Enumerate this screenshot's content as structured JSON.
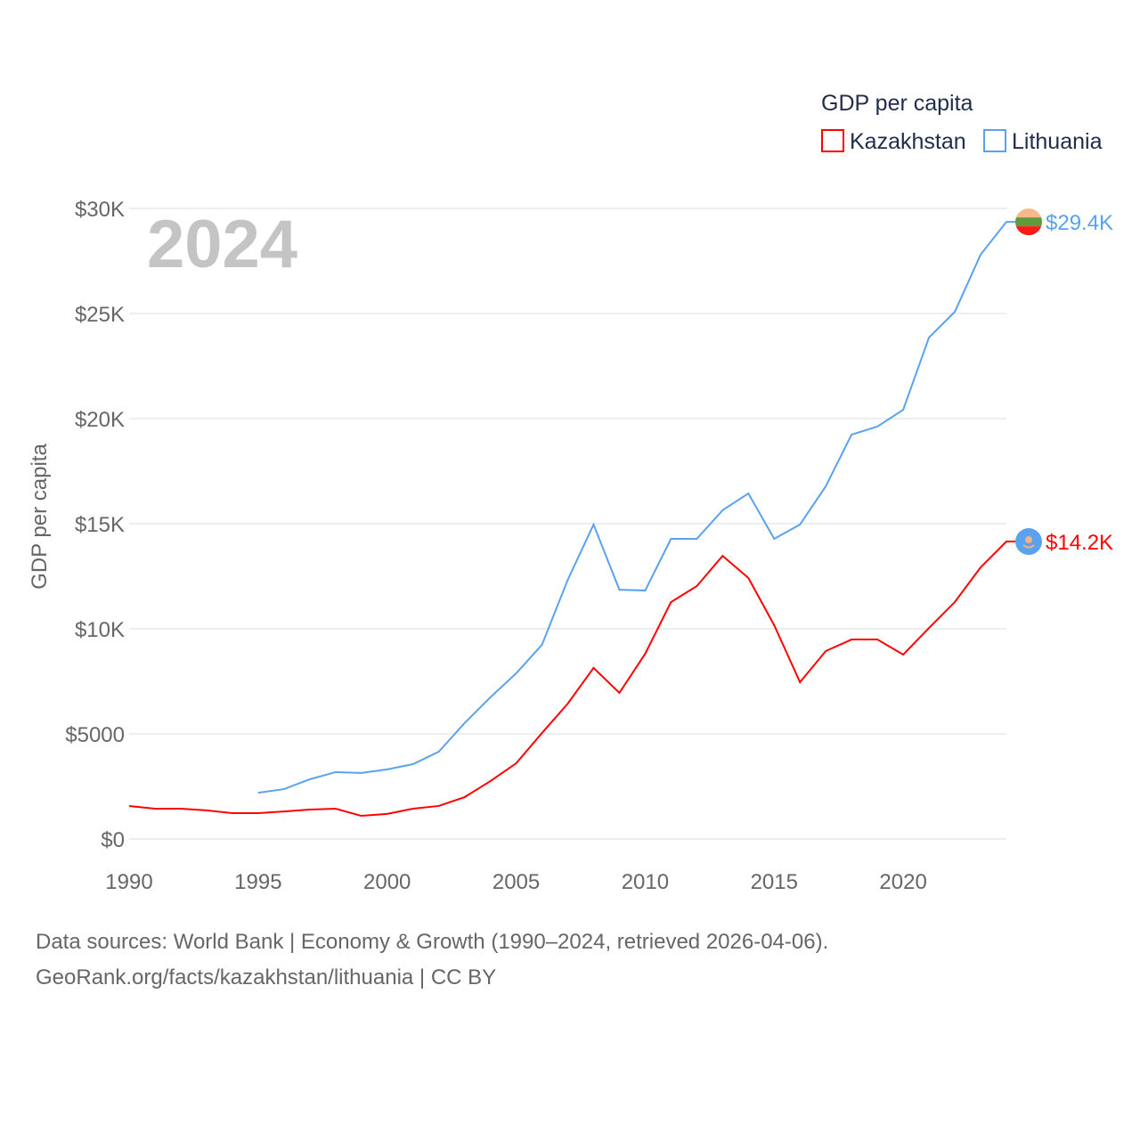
{
  "chart_data": {
    "type": "line",
    "title": "2024",
    "xlabel": "",
    "ylabel": "GDP per capita",
    "legend_title": "GDP per capita",
    "legend_placement": "top-right",
    "xlim": [
      1990,
      2024
    ],
    "ylim": [
      0,
      30000
    ],
    "x_ticks": [
      1990,
      1995,
      2000,
      2005,
      2010,
      2015,
      2020
    ],
    "x_tick_labels": [
      "1990",
      "1995",
      "2000",
      "2005",
      "2010",
      "2015",
      "2020"
    ],
    "y_ticks": [
      0,
      5000,
      10000,
      15000,
      20000,
      25000,
      30000
    ],
    "y_tick_labels": [
      "$0",
      "$5000",
      "$10K",
      "$15K",
      "$20K",
      "$25K",
      "$30K"
    ],
    "grid": true,
    "series": [
      {
        "name": "Kazakhstan",
        "color": "#ff0000",
        "end_label": "$14.2K",
        "flag": "kazakhstan-flag",
        "x": [
          1990,
          1991,
          1992,
          1993,
          1994,
          1995,
          1996,
          1997,
          1998,
          1999,
          2000,
          2001,
          2002,
          2003,
          2004,
          2005,
          2006,
          2007,
          2008,
          2009,
          2010,
          2011,
          2012,
          2013,
          2014,
          2015,
          2016,
          2017,
          2018,
          2019,
          2020,
          2021,
          2022,
          2023,
          2024
        ],
        "values": [
          1570,
          1440,
          1440,
          1360,
          1230,
          1230,
          1310,
          1400,
          1440,
          1100,
          1190,
          1440,
          1570,
          1990,
          2750,
          3600,
          5040,
          6440,
          8140,
          6950,
          8810,
          11270,
          12030,
          13470,
          12420,
          10170,
          7460,
          8940,
          9490,
          9490,
          8770,
          10040,
          11270,
          12920,
          14150
        ]
      },
      {
        "name": "Lithuania",
        "color": "#5aa2ef",
        "end_label": "$29.4K",
        "flag": "lithuania-flag",
        "x": [
          1995,
          1996,
          1997,
          1998,
          1999,
          2000,
          2001,
          2002,
          2003,
          2004,
          2005,
          2006,
          2007,
          2008,
          2009,
          2010,
          2011,
          2012,
          2013,
          2014,
          2015,
          2016,
          2017,
          2018,
          2019,
          2020,
          2021,
          2022,
          2023,
          2024
        ],
        "values": [
          2200,
          2370,
          2840,
          3180,
          3140,
          3310,
          3560,
          4150,
          5510,
          6740,
          7880,
          9240,
          12330,
          14960,
          11860,
          11820,
          14280,
          14280,
          15640,
          16440,
          14280,
          14960,
          16780,
          19240,
          19620,
          20420,
          23860,
          25080,
          27800,
          29360
        ]
      }
    ]
  },
  "footer": {
    "line1": "Data sources: World Bank | Economy & Growth (1990–2024, retrieved 2026-04-06).",
    "line2": "GeoRank.org/facts/kazakhstan/lithuania | CC BY"
  }
}
